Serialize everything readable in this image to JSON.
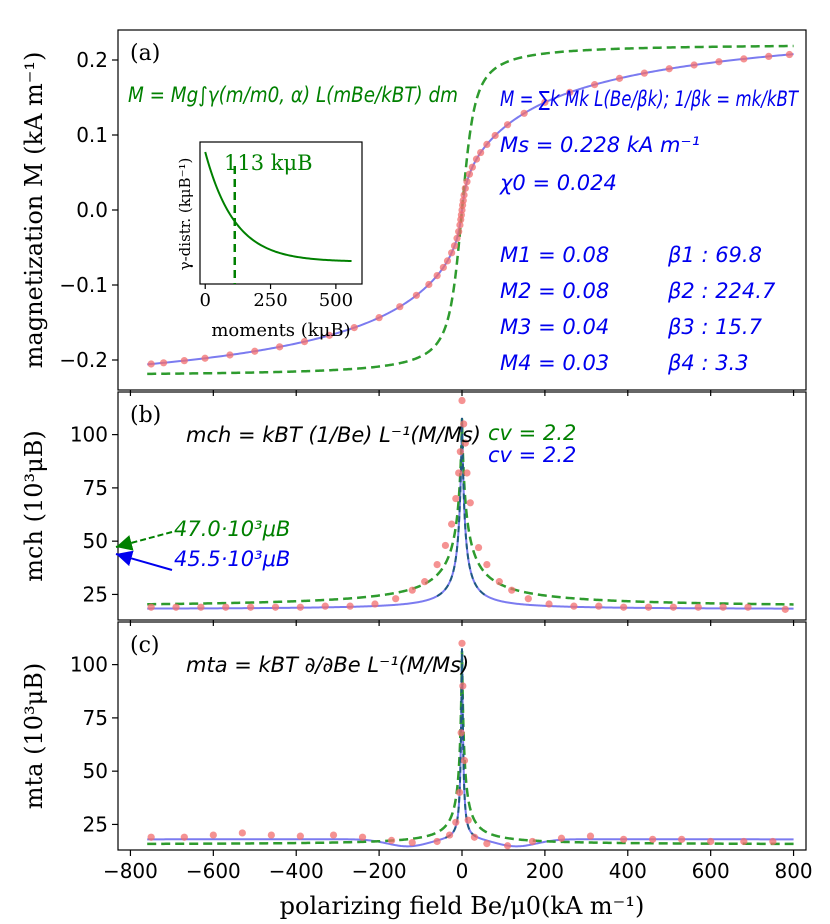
{
  "colors": {
    "data_points": "#f26d6d",
    "blue_fit": "#7b7bf0",
    "green_fit": "#2e9b2e",
    "dark_fit": "#1f5a80",
    "blue_text": "#0000ee",
    "green_text": "#008000"
  },
  "chart_data": [
    {
      "type": "line",
      "panel_label": "(a)",
      "ylabel": "magnetization M (kA m⁻¹)",
      "xlim": [
        -830,
        830
      ],
      "ylim": [
        -0.24,
        0.24
      ],
      "yticks": [
        -0.2,
        -0.1,
        0.0,
        0.1,
        0.2
      ],
      "ytick_labels": [
        "−0.2",
        "−0.1",
        "0.0",
        "0.1",
        "0.2"
      ],
      "series": [
        {
          "name": "data",
          "style": "points"
        },
        {
          "name": "blue fit: M = Σk Mk L(Be/βk)",
          "style": "solid"
        },
        {
          "name": "green fit: M = Mg ∫γ L dm",
          "style": "dashed"
        }
      ],
      "annotations": {
        "green_eq": "M = Mg∫γ(m/m0, α) L(mBe/kBT) dm",
        "blue_eq": "M = ∑k Mk L(Be/βk);   1/βk = mk/kBT",
        "Ms": "Ms = 0.228 kA m⁻¹",
        "chi0": "χ0 = 0.024",
        "M1": "M1 = 0.08",
        "M2": "M2 = 0.08",
        "M3": "M3 = 0.04",
        "M4": "M4 = 0.03",
        "b1": "β1 : 69.8",
        "b2": "β2 : 224.7",
        "b3": "β3 : 15.7",
        "b4": "β4 : 3.3"
      },
      "Ms_value": 0.228,
      "Mk": [
        0.08,
        0.08,
        0.04,
        0.03
      ],
      "beta_k": [
        69.8,
        224.7,
        15.7,
        3.3
      ],
      "inset": {
        "type": "line",
        "xlabel": "moments (kμB)",
        "ylabel": "γ-distr. (kμB⁻¹)",
        "xticks": [
          0,
          250,
          500
        ],
        "xlim": [
          -20,
          600
        ],
        "marker_x": 113,
        "marker_label": "113 kμB"
      }
    },
    {
      "type": "line",
      "panel_label": "(b)",
      "ylabel": "mch (10³μB)",
      "xlim": [
        -830,
        830
      ],
      "ylim": [
        13,
        120
      ],
      "yticks": [
        25,
        50,
        75,
        100
      ],
      "equation": "mch = kBT (1/Be) L⁻¹(M/Ms)",
      "cv_green": "cv = 2.2",
      "cv_blue": "cv = 2.2",
      "arrow_green": "47.0·10³μB",
      "arrow_blue": "45.5·10³μB",
      "data_points": [
        [
          -750,
          19
        ],
        [
          -690,
          19
        ],
        [
          -630,
          19
        ],
        [
          -570,
          19
        ],
        [
          -510,
          19
        ],
        [
          -450,
          19
        ],
        [
          -390,
          19
        ],
        [
          -330,
          19.5
        ],
        [
          -270,
          19.5
        ],
        [
          -210,
          20.5
        ],
        [
          -160,
          23
        ],
        [
          -120,
          27
        ],
        [
          -90,
          31
        ],
        [
          -60,
          39
        ],
        [
          -40,
          48
        ],
        [
          -25,
          58
        ],
        [
          -15,
          70
        ],
        [
          -8,
          82
        ],
        [
          -4,
          92
        ],
        [
          0,
          116
        ],
        [
          4,
          105
        ],
        [
          8,
          96
        ],
        [
          12,
          82
        ],
        [
          20,
          68
        ],
        [
          40,
          47
        ],
        [
          60,
          39
        ],
        [
          90,
          31
        ],
        [
          120,
          27
        ],
        [
          160,
          23
        ],
        [
          210,
          20.5
        ],
        [
          270,
          19.5
        ],
        [
          330,
          19.5
        ],
        [
          390,
          19
        ],
        [
          450,
          19
        ],
        [
          510,
          19
        ],
        [
          570,
          19
        ],
        [
          630,
          19
        ],
        [
          690,
          19
        ],
        [
          780,
          18
        ]
      ]
    },
    {
      "type": "line",
      "panel_label": "(c)",
      "ylabel": "mta (10³μB)",
      "xlabel": "polarizing field Be/μ0(kA m⁻¹)",
      "xlim": [
        -830,
        830
      ],
      "ylim": [
        13,
        120
      ],
      "yticks": [
        25,
        50,
        75,
        100
      ],
      "xticks": [
        -800,
        -600,
        -400,
        -200,
        0,
        200,
        400,
        600,
        800
      ],
      "xtick_labels": [
        "−800",
        "−600",
        "−400",
        "−200",
        "0",
        "200",
        "400",
        "600",
        "800"
      ],
      "equation": "mta = kBT ∂/∂Be L⁻¹(M/Ms)",
      "data_points": [
        [
          -750,
          19
        ],
        [
          -670,
          19
        ],
        [
          -600,
          20
        ],
        [
          -530,
          21
        ],
        [
          -460,
          20
        ],
        [
          -390,
          19.5
        ],
        [
          -310,
          20
        ],
        [
          -240,
          19
        ],
        [
          -170,
          17.5
        ],
        [
          -120,
          16.5
        ],
        [
          -60,
          17
        ],
        [
          -30,
          20
        ],
        [
          -15,
          26
        ],
        [
          -6,
          40
        ],
        [
          -2,
          68
        ],
        [
          0,
          110
        ],
        [
          2,
          90
        ],
        [
          6,
          55
        ],
        [
          15,
          27
        ],
        [
          30,
          19
        ],
        [
          60,
          16
        ],
        [
          110,
          15
        ],
        [
          170,
          17
        ],
        [
          240,
          18.5
        ],
        [
          310,
          19.5
        ],
        [
          390,
          18
        ],
        [
          460,
          18
        ],
        [
          530,
          18
        ],
        [
          600,
          17
        ],
        [
          680,
          17
        ],
        [
          750,
          17
        ]
      ]
    }
  ]
}
